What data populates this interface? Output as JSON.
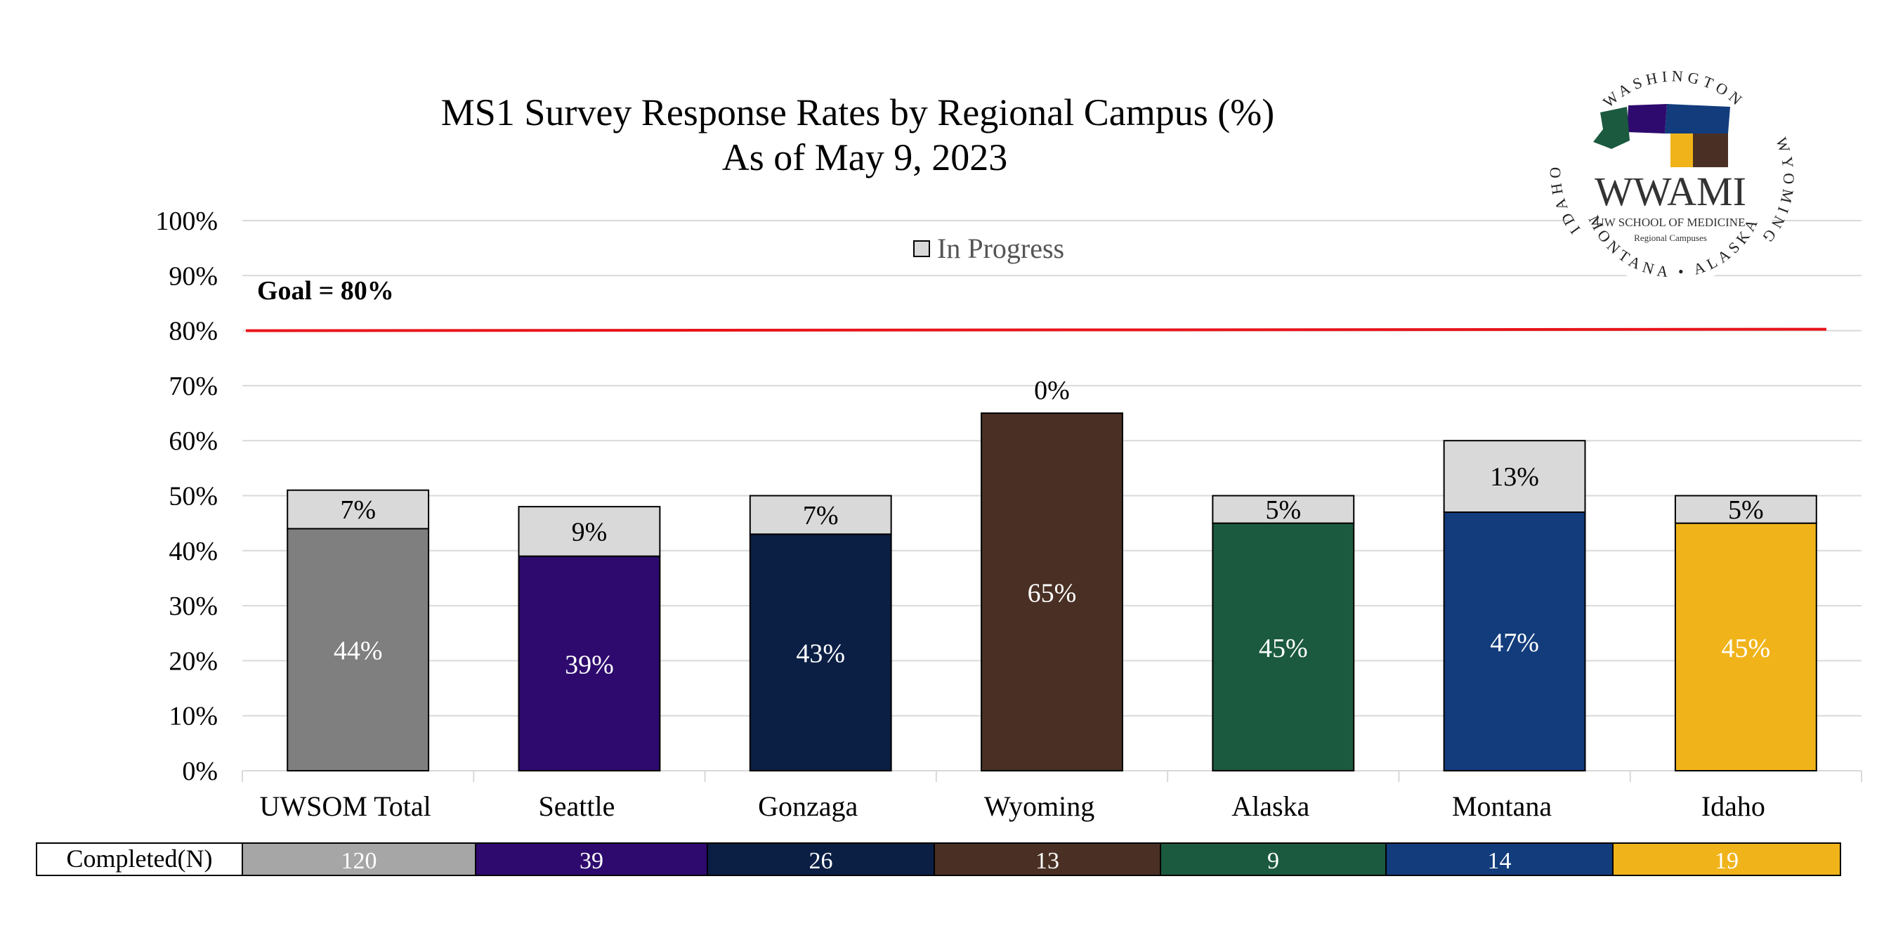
{
  "chart_data": {
    "type": "bar",
    "stacked": true,
    "title": "MS1 Survey Response Rates by Regional Campus (%)",
    "subtitle": "As of May 9, 2023",
    "categories": [
      "UWSOM Total",
      "Seattle",
      "Gonzaga",
      "Wyoming",
      "Alaska",
      "Montana",
      "Idaho"
    ],
    "series": [
      {
        "values": [
          44,
          39,
          43,
          65,
          45,
          47,
          45
        ],
        "labels": [
          "44%",
          "39%",
          "43%",
          "65%",
          "45%",
          "47%",
          "45%"
        ],
        "colors": [
          "#7f7f7f",
          "#2e0a6e",
          "#0b1f45",
          "#4a3024",
          "#1b5a3f",
          "#123c7c",
          "#f0b41a"
        ]
      },
      {
        "name": "In Progress",
        "values": [
          7,
          9,
          7,
          0,
          5,
          13,
          5
        ],
        "labels": [
          "7%",
          "9%",
          "7%",
          "0%",
          "5%",
          "13%",
          "5%"
        ],
        "color": "#d9d9d9"
      }
    ],
    "ylim": [
      0,
      100
    ],
    "yticks": [
      "0%",
      "10%",
      "20%",
      "30%",
      "40%",
      "50%",
      "60%",
      "70%",
      "80%",
      "90%",
      "100%"
    ],
    "grid": true,
    "legend": "top-center",
    "goal": {
      "value": 80,
      "label": "Goal = 80%",
      "color": "#e8141b"
    },
    "table": {
      "row_label": "Completed(N)",
      "values": [
        "120",
        "39",
        "26",
        "13",
        "9",
        "14",
        "19"
      ],
      "colors": [
        "#a6a6a6",
        "#2e0a6e",
        "#0b1f45",
        "#4a3024",
        "#1b5a3f",
        "#123c7c",
        "#f0b41a"
      ]
    }
  },
  "logo": {
    "arc_top": "WASHINGTON",
    "arc_left": "IDAHO",
    "arc_right": "WYOMING",
    "arc_bottom": "MONTANA • ALASKA",
    "wordmark": "WWAMI",
    "subtitle1": "UW SCHOOL OF MEDICINE",
    "subtitle2": "Regional Campuses"
  }
}
